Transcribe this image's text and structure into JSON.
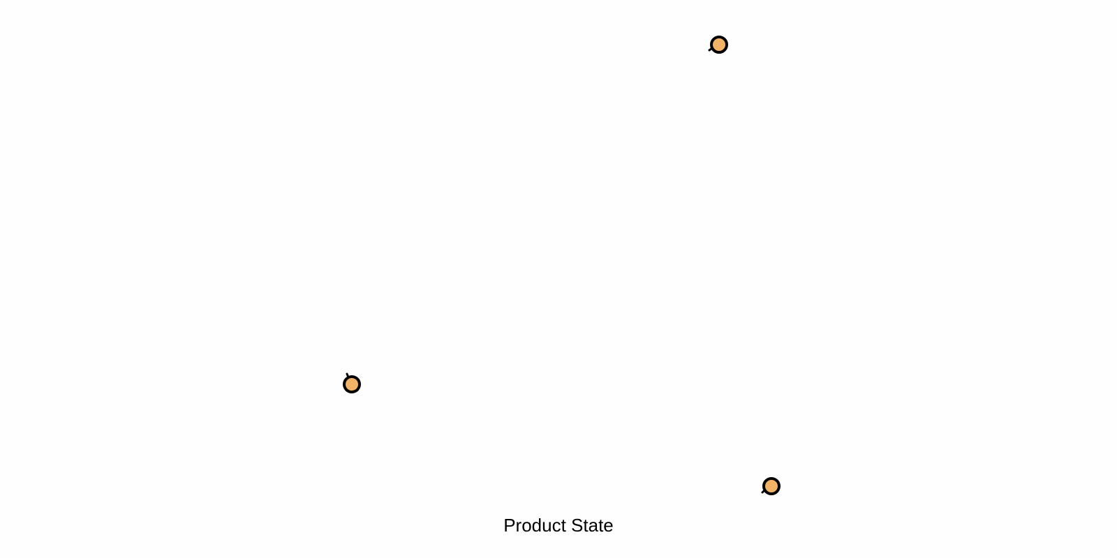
{
  "diagram": {
    "caption": "Product State",
    "node_count": 3
  },
  "colors": {
    "background": "#fefefe",
    "node_fill": "#f2b366",
    "node_stroke": "#000000",
    "caption_text": "#000000"
  },
  "icons": {
    "node": "state-node-circle"
  }
}
